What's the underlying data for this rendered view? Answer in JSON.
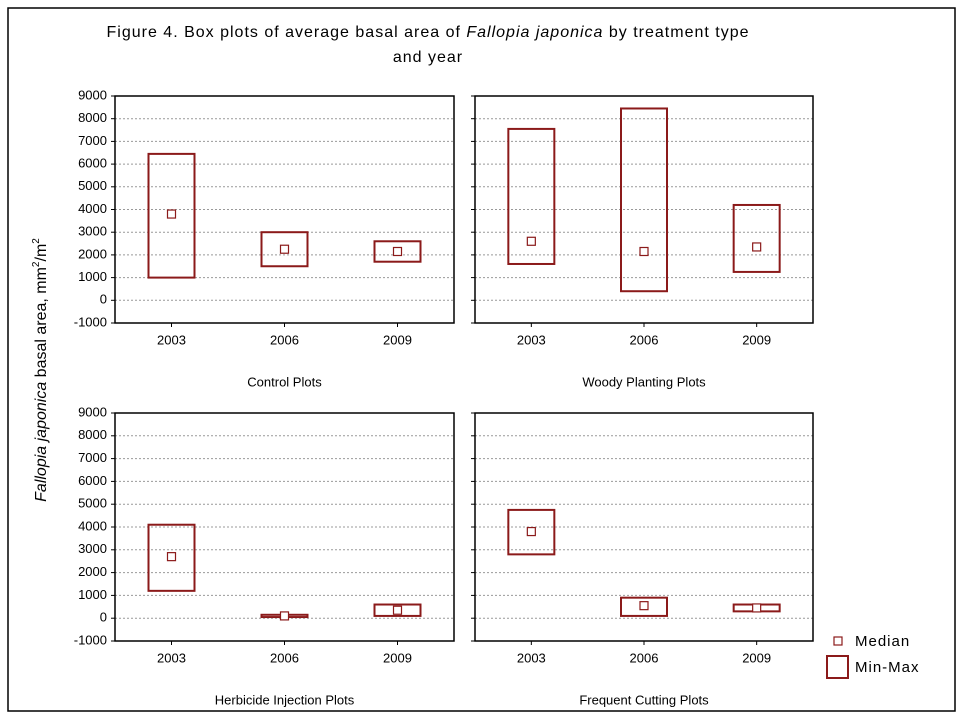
{
  "figure": {
    "title": [
      "Figure 4. Box plots of average basal area of ",
      "Fallopia japonica",
      " by treatment type",
      "and year"
    ],
    "ylabel": [
      "Fallopia japonica",
      " basal area, mm",
      "2",
      "/m",
      "2"
    ],
    "legend": [
      "Median",
      "Min-Max"
    ]
  },
  "chart_data": [
    {
      "type": "box",
      "title": "Control Plots",
      "categories": [
        "2003",
        "2006",
        "2009"
      ],
      "color": "#8b1a1a",
      "min": [
        1000,
        1500,
        1700
      ],
      "max": [
        6450,
        3000,
        2600
      ],
      "median": [
        3800,
        2250,
        2150
      ],
      "ylim": [
        -1000,
        9000
      ],
      "yticks": [
        -1000,
        0,
        1000,
        2000,
        3000,
        4000,
        5000,
        6000,
        7000,
        8000,
        9000
      ],
      "grid": true,
      "show_ytick_labels": true
    },
    {
      "type": "box",
      "title": "Woody Planting Plots",
      "categories": [
        "2003",
        "2006",
        "2009"
      ],
      "color": "#8b1a1a",
      "min": [
        1600,
        400,
        1250
      ],
      "max": [
        7550,
        8450,
        4200
      ],
      "median": [
        2600,
        2150,
        2350
      ],
      "ylim": [
        -1000,
        9000
      ],
      "yticks": [
        -1000,
        0,
        1000,
        2000,
        3000,
        4000,
        5000,
        6000,
        7000,
        8000,
        9000
      ],
      "grid": true,
      "show_ytick_labels": false
    },
    {
      "type": "box",
      "title": "Herbicide Injection Plots",
      "categories": [
        "2003",
        "2006",
        "2009"
      ],
      "color": "#8b1a1a",
      "min": [
        1200,
        50,
        100
      ],
      "max": [
        4100,
        150,
        600
      ],
      "median": [
        2700,
        100,
        350
      ],
      "ylim": [
        -1000,
        9000
      ],
      "yticks": [
        -1000,
        0,
        1000,
        2000,
        3000,
        4000,
        5000,
        6000,
        7000,
        8000,
        9000
      ],
      "grid": true,
      "show_ytick_labels": true
    },
    {
      "type": "box",
      "title": "Frequent Cutting Plots",
      "categories": [
        "2003",
        "2006",
        "2009"
      ],
      "color": "#8b1a1a",
      "min": [
        2800,
        100,
        300
      ],
      "max": [
        4750,
        900,
        600
      ],
      "median": [
        3800,
        550,
        450
      ],
      "ylim": [
        -1000,
        9000
      ],
      "yticks": [
        -1000,
        0,
        1000,
        2000,
        3000,
        4000,
        5000,
        6000,
        7000,
        8000,
        9000
      ],
      "grid": true,
      "show_ytick_labels": false
    }
  ]
}
